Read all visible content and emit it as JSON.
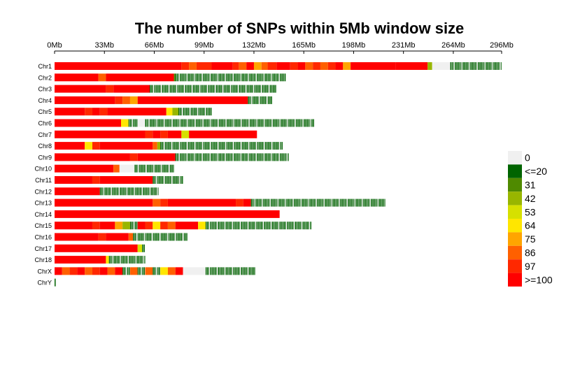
{
  "chart_data": {
    "type": "heatmap",
    "title": "The number of SNPs within 5Mb window size",
    "x_axis_position": "top",
    "x_ticks": [
      "0Mb",
      "33Mb",
      "66Mb",
      "99Mb",
      "132Mb",
      "165Mb",
      "198Mb",
      "231Mb",
      "264Mb",
      "296Mb"
    ],
    "x_tick_values": [
      0,
      33,
      66,
      99,
      132,
      165,
      198,
      231,
      264,
      296
    ],
    "xlim": [
      0,
      296
    ],
    "legend": {
      "position": "right",
      "items": [
        {
          "label": "0",
          "color": "#F0F0F0"
        },
        {
          "label": "<=20",
          "color": "#006400"
        },
        {
          "label": "31",
          "color": "#4F8A00"
        },
        {
          "label": "42",
          "color": "#98B600"
        },
        {
          "label": "53",
          "color": "#D6E000"
        },
        {
          "label": "64",
          "color": "#FFE600"
        },
        {
          "label": "75",
          "color": "#FFA500"
        },
        {
          "label": "86",
          "color": "#FF6000"
        },
        {
          "label": "97",
          "color": "#FF2800"
        },
        {
          "label": ">=100",
          "color": "#FF0000"
        }
      ]
    },
    "chromosomes": [
      {
        "name": "Chr1",
        "length": 296,
        "segments": [
          [
            0,
            84,
            9
          ],
          [
            84,
            89,
            8
          ],
          [
            89,
            94,
            7
          ],
          [
            94,
            104,
            8
          ],
          [
            104,
            118,
            9
          ],
          [
            118,
            122,
            8
          ],
          [
            122,
            127,
            7
          ],
          [
            127,
            132,
            9
          ],
          [
            132,
            137,
            6
          ],
          [
            137,
            141,
            7
          ],
          [
            141,
            147,
            8
          ],
          [
            147,
            156,
            9
          ],
          [
            156,
            161,
            8
          ],
          [
            161,
            166,
            9
          ],
          [
            166,
            171,
            7
          ],
          [
            171,
            176,
            8
          ],
          [
            176,
            181,
            7
          ],
          [
            181,
            186,
            8
          ],
          [
            186,
            191,
            9
          ],
          [
            191,
            196,
            6
          ],
          [
            196,
            226,
            9
          ],
          [
            226,
            247,
            9
          ],
          [
            247,
            250,
            3
          ],
          [
            250,
            262,
            0
          ],
          [
            262,
            296,
            1
          ]
        ]
      },
      {
        "name": "Chr2",
        "length": 153,
        "segments": [
          [
            0,
            29,
            9
          ],
          [
            29,
            34,
            7
          ],
          [
            34,
            79,
            9
          ],
          [
            79,
            80,
            2
          ],
          [
            80,
            153,
            1
          ]
        ]
      },
      {
        "name": "Chr3",
        "length": 147,
        "segments": [
          [
            0,
            34,
            9
          ],
          [
            34,
            39,
            8
          ],
          [
            39,
            63,
            9
          ],
          [
            63,
            147,
            1
          ]
        ]
      },
      {
        "name": "Chr4",
        "length": 144,
        "segments": [
          [
            0,
            40,
            9
          ],
          [
            40,
            45,
            8
          ],
          [
            45,
            50,
            7
          ],
          [
            50,
            55,
            6
          ],
          [
            55,
            128,
            9
          ],
          [
            128,
            144,
            1
          ]
        ]
      },
      {
        "name": "Chr5",
        "length": 104,
        "segments": [
          [
            0,
            20,
            9
          ],
          [
            20,
            25,
            8
          ],
          [
            25,
            30,
            9
          ],
          [
            30,
            35,
            8
          ],
          [
            35,
            74,
            9
          ],
          [
            74,
            78,
            5
          ],
          [
            78,
            82,
            3
          ],
          [
            82,
            104,
            1
          ]
        ]
      },
      {
        "name": "Chr6",
        "length": 172,
        "segments": [
          [
            0,
            44,
            9
          ],
          [
            44,
            49,
            5
          ],
          [
            49,
            55,
            1
          ],
          [
            55,
            60,
            0
          ],
          [
            60,
            172,
            1
          ]
        ]
      },
      {
        "name": "Chr7",
        "length": 134,
        "segments": [
          [
            0,
            60,
            9
          ],
          [
            60,
            65,
            8
          ],
          [
            65,
            70,
            9
          ],
          [
            70,
            75,
            8
          ],
          [
            75,
            84,
            9
          ],
          [
            84,
            89,
            4
          ],
          [
            89,
            134,
            9
          ]
        ]
      },
      {
        "name": "Chr8",
        "length": 151,
        "segments": [
          [
            0,
            20,
            9
          ],
          [
            20,
            25,
            5
          ],
          [
            25,
            30,
            8
          ],
          [
            30,
            65,
            9
          ],
          [
            65,
            68,
            7
          ],
          [
            68,
            70,
            3
          ],
          [
            70,
            151,
            1
          ]
        ]
      },
      {
        "name": "Chr9",
        "length": 155,
        "segments": [
          [
            0,
            50,
            9
          ],
          [
            50,
            55,
            8
          ],
          [
            55,
            80,
            9
          ],
          [
            80,
            155,
            1
          ]
        ]
      },
      {
        "name": "Chr10",
        "length": 79,
        "segments": [
          [
            0,
            39,
            9
          ],
          [
            39,
            43,
            7
          ],
          [
            43,
            53,
            0
          ],
          [
            53,
            79,
            1
          ]
        ]
      },
      {
        "name": "Chr11",
        "length": 85,
        "segments": [
          [
            0,
            25,
            9
          ],
          [
            25,
            30,
            8
          ],
          [
            30,
            65,
            9
          ],
          [
            65,
            85,
            1
          ]
        ]
      },
      {
        "name": "Chr12",
        "length": 69,
        "segments": [
          [
            0,
            30,
            9
          ],
          [
            30,
            69,
            1
          ]
        ]
      },
      {
        "name": "Chr13",
        "length": 219,
        "segments": [
          [
            0,
            65,
            9
          ],
          [
            65,
            70,
            7
          ],
          [
            70,
            75,
            8
          ],
          [
            75,
            120,
            9
          ],
          [
            120,
            125,
            8
          ],
          [
            125,
            130,
            9
          ],
          [
            130,
            219,
            1
          ]
        ]
      },
      {
        "name": "Chr14",
        "length": 149,
        "segments": [
          [
            0,
            149,
            9
          ]
        ]
      },
      {
        "name": "Chr15",
        "length": 170,
        "segments": [
          [
            0,
            25,
            9
          ],
          [
            25,
            30,
            8
          ],
          [
            30,
            40,
            9
          ],
          [
            40,
            45,
            6
          ],
          [
            45,
            50,
            3
          ],
          [
            50,
            55,
            1
          ],
          [
            55,
            60,
            9
          ],
          [
            60,
            65,
            8
          ],
          [
            65,
            70,
            5
          ],
          [
            70,
            75,
            8
          ],
          [
            75,
            80,
            7
          ],
          [
            80,
            95,
            9
          ],
          [
            95,
            100,
            5
          ],
          [
            100,
            170,
            1
          ]
        ]
      },
      {
        "name": "Chr16",
        "length": 88,
        "segments": [
          [
            0,
            29,
            9
          ],
          [
            29,
            34,
            8
          ],
          [
            34,
            49,
            9
          ],
          [
            49,
            52,
            7
          ],
          [
            52,
            88,
            1
          ]
        ]
      },
      {
        "name": "Chr17",
        "length": 60,
        "segments": [
          [
            0,
            55,
            9
          ],
          [
            55,
            58,
            4
          ],
          [
            58,
            60,
            1
          ]
        ]
      },
      {
        "name": "Chr18",
        "length": 60,
        "segments": [
          [
            0,
            34,
            9
          ],
          [
            34,
            36,
            5
          ],
          [
            36,
            60,
            1
          ]
        ]
      },
      {
        "name": "ChrX",
        "length": 133,
        "segments": [
          [
            0,
            5,
            9
          ],
          [
            5,
            10,
            7
          ],
          [
            10,
            15,
            8
          ],
          [
            15,
            20,
            9
          ],
          [
            20,
            25,
            7
          ],
          [
            25,
            30,
            8
          ],
          [
            30,
            35,
            9
          ],
          [
            35,
            40,
            7
          ],
          [
            40,
            45,
            9
          ],
          [
            45,
            50,
            1
          ],
          [
            50,
            55,
            7
          ],
          [
            55,
            60,
            1
          ],
          [
            60,
            65,
            7
          ],
          [
            65,
            70,
            1
          ],
          [
            70,
            75,
            5
          ],
          [
            75,
            80,
            7
          ],
          [
            80,
            85,
            9
          ],
          [
            85,
            100,
            0
          ],
          [
            100,
            133,
            1
          ]
        ]
      },
      {
        "name": "ChrY",
        "length": 1,
        "segments": [
          [
            0,
            1,
            1
          ]
        ]
      }
    ]
  }
}
